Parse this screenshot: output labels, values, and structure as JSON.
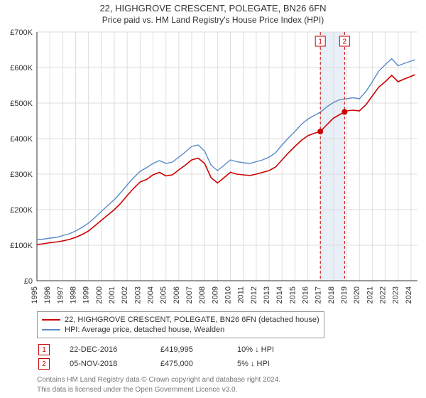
{
  "title": {
    "line1": "22, HIGHGROVE CRESCENT, POLEGATE, BN26 6FN",
    "line2": "Price paid vs. HM Land Registry's House Price Index (HPI)"
  },
  "chart": {
    "type": "line",
    "background_color": "#ffffff",
    "font_family": "Arial",
    "label_fontsize": 11,
    "ylim": [
      0,
      700000
    ],
    "ytick_step": 100000,
    "ytick_labels": [
      "£0",
      "£100K",
      "£200K",
      "£300K",
      "£400K",
      "£500K",
      "£600K",
      "£700K"
    ],
    "xlim": [
      1995,
      2024.5
    ],
    "xtick_step": 1,
    "xtick_labels": [
      "1995",
      "1996",
      "1997",
      "1998",
      "1999",
      "2000",
      "2001",
      "2002",
      "2003",
      "2004",
      "2005",
      "2006",
      "2007",
      "2008",
      "2009",
      "2010",
      "2011",
      "2012",
      "2013",
      "2014",
      "2015",
      "2016",
      "2017",
      "2018",
      "2019",
      "2020",
      "2021",
      "2022",
      "2023",
      "2024"
    ],
    "grid_color": "#dddddd",
    "axis_color": "#333333",
    "highlight_band": {
      "xstart": 2016.97,
      "xend": 2018.85,
      "fill": "#d8e4f0",
      "opacity": 0.6
    },
    "series": [
      {
        "name": "property",
        "label": "22, HIGHGROVE CRESCENT, POLEGATE, BN26 6FN (detached house)",
        "color": "#cc0000",
        "line_width": 1.6,
        "points": [
          [
            1995,
            102000
          ],
          [
            1995.5,
            104000
          ],
          [
            1996,
            107000
          ],
          [
            1996.5,
            109000
          ],
          [
            1997,
            112000
          ],
          [
            1997.5,
            116000
          ],
          [
            1998,
            122000
          ],
          [
            1998.5,
            130000
          ],
          [
            1999,
            140000
          ],
          [
            1999.5,
            155000
          ],
          [
            2000,
            170000
          ],
          [
            2000.5,
            185000
          ],
          [
            2001,
            200000
          ],
          [
            2001.5,
            218000
          ],
          [
            2002,
            240000
          ],
          [
            2002.5,
            260000
          ],
          [
            2003,
            278000
          ],
          [
            2003.5,
            285000
          ],
          [
            2004,
            298000
          ],
          [
            2004.5,
            305000
          ],
          [
            2005,
            295000
          ],
          [
            2005.5,
            298000
          ],
          [
            2006,
            312000
          ],
          [
            2006.5,
            325000
          ],
          [
            2007,
            340000
          ],
          [
            2007.5,
            345000
          ],
          [
            2008,
            330000
          ],
          [
            2008.5,
            290000
          ],
          [
            2009,
            275000
          ],
          [
            2009.5,
            290000
          ],
          [
            2010,
            305000
          ],
          [
            2010.5,
            300000
          ],
          [
            2011,
            298000
          ],
          [
            2011.5,
            296000
          ],
          [
            2012,
            300000
          ],
          [
            2012.5,
            305000
          ],
          [
            2013,
            310000
          ],
          [
            2013.5,
            320000
          ],
          [
            2014,
            340000
          ],
          [
            2014.5,
            360000
          ],
          [
            2015,
            378000
          ],
          [
            2015.5,
            395000
          ],
          [
            2016,
            408000
          ],
          [
            2016.5,
            415000
          ],
          [
            2016.97,
            419995
          ],
          [
            2017.5,
            440000
          ],
          [
            2018,
            458000
          ],
          [
            2018.5,
            468000
          ],
          [
            2018.85,
            475000
          ],
          [
            2019,
            478000
          ],
          [
            2019.5,
            480000
          ],
          [
            2020,
            478000
          ],
          [
            2020.5,
            495000
          ],
          [
            2021,
            520000
          ],
          [
            2021.5,
            545000
          ],
          [
            2022,
            560000
          ],
          [
            2022.5,
            578000
          ],
          [
            2023,
            560000
          ],
          [
            2023.5,
            568000
          ],
          [
            2024,
            575000
          ],
          [
            2024.3,
            580000
          ]
        ]
      },
      {
        "name": "hpi",
        "label": "HPI: Average price, detached house, Wealden",
        "color": "#5a8ac6",
        "line_width": 1.4,
        "points": [
          [
            1995,
            115000
          ],
          [
            1995.5,
            117000
          ],
          [
            1996,
            120000
          ],
          [
            1996.5,
            122000
          ],
          [
            1997,
            127000
          ],
          [
            1997.5,
            132000
          ],
          [
            1998,
            140000
          ],
          [
            1998.5,
            150000
          ],
          [
            1999,
            162000
          ],
          [
            1999.5,
            178000
          ],
          [
            2000,
            195000
          ],
          [
            2000.5,
            212000
          ],
          [
            2001,
            228000
          ],
          [
            2001.5,
            248000
          ],
          [
            2002,
            270000
          ],
          [
            2002.5,
            290000
          ],
          [
            2003,
            308000
          ],
          [
            2003.5,
            318000
          ],
          [
            2004,
            330000
          ],
          [
            2004.5,
            338000
          ],
          [
            2005,
            330000
          ],
          [
            2005.5,
            334000
          ],
          [
            2006,
            348000
          ],
          [
            2006.5,
            362000
          ],
          [
            2007,
            378000
          ],
          [
            2007.5,
            382000
          ],
          [
            2008,
            365000
          ],
          [
            2008.5,
            325000
          ],
          [
            2009,
            310000
          ],
          [
            2009.5,
            325000
          ],
          [
            2010,
            340000
          ],
          [
            2010.5,
            335000
          ],
          [
            2011,
            332000
          ],
          [
            2011.5,
            330000
          ],
          [
            2012,
            335000
          ],
          [
            2012.5,
            340000
          ],
          [
            2013,
            348000
          ],
          [
            2013.5,
            360000
          ],
          [
            2014,
            382000
          ],
          [
            2014.5,
            402000
          ],
          [
            2015,
            420000
          ],
          [
            2015.5,
            440000
          ],
          [
            2016,
            455000
          ],
          [
            2016.5,
            465000
          ],
          [
            2017,
            475000
          ],
          [
            2017.5,
            490000
          ],
          [
            2018,
            502000
          ],
          [
            2018.5,
            510000
          ],
          [
            2019,
            512000
          ],
          [
            2019.5,
            515000
          ],
          [
            2020,
            512000
          ],
          [
            2020.5,
            532000
          ],
          [
            2021,
            560000
          ],
          [
            2021.5,
            590000
          ],
          [
            2022,
            608000
          ],
          [
            2022.5,
            625000
          ],
          [
            2023,
            605000
          ],
          [
            2023.5,
            612000
          ],
          [
            2024,
            618000
          ],
          [
            2024.3,
            622000
          ]
        ]
      }
    ],
    "sale_markers": [
      {
        "id": "1",
        "x": 2016.97,
        "y": 419995,
        "dot_color": "#cc0000"
      },
      {
        "id": "2",
        "x": 2018.85,
        "y": 475000,
        "dot_color": "#cc0000"
      }
    ]
  },
  "legend": {
    "series": [
      {
        "color": "#cc0000",
        "text": "22, HIGHGROVE CRESCENT, POLEGATE, BN26 6FN (detached house)"
      },
      {
        "color": "#5a8ac6",
        "text": "HPI: Average price, detached house, Wealden"
      }
    ]
  },
  "transactions": [
    {
      "marker": "1",
      "date": "22-DEC-2016",
      "price": "£419,995",
      "diff": "10% ↓ HPI"
    },
    {
      "marker": "2",
      "date": "05-NOV-2018",
      "price": "£475,000",
      "diff": "5% ↓ HPI"
    }
  ],
  "footer": {
    "line1": "Contains HM Land Registry data © Crown copyright and database right 2024.",
    "line2": "This data is licensed under the Open Government Licence v3.0."
  }
}
